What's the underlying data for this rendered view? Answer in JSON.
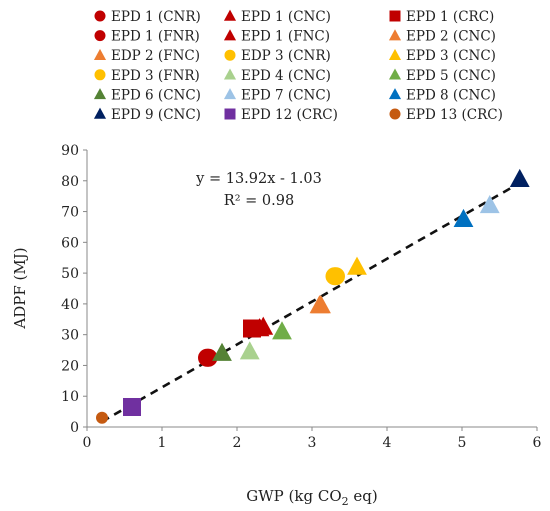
{
  "chart_data": {
    "type": "scatter",
    "xlabel_prefix": "GWP (kg CO",
    "xlabel_sub": "2",
    "xlabel_suffix": " eq)",
    "ylabel": "ADPF (MJ)",
    "xlim": [
      0,
      6
    ],
    "ylim": [
      0,
      90
    ],
    "xticks": [
      "0",
      "1",
      "2",
      "3",
      "4",
      "5",
      "6"
    ],
    "yticks": [
      "0",
      "10",
      "20",
      "30",
      "40",
      "50",
      "60",
      "70",
      "80",
      "90"
    ],
    "grid": false,
    "legend_position": "top",
    "trendline": {
      "style": "dashed",
      "slope": 13.92,
      "intercept": -1.03,
      "x_range": [
        0.2,
        5.75
      ],
      "equation": "y = 13.92x - 1.03",
      "r_squared": "R² = 0.98"
    },
    "series": [
      {
        "name": "EPD 1 (CNR)",
        "marker": "circle",
        "color": "#c00000",
        "points": [
          [
            1.6,
            22.5
          ]
        ]
      },
      {
        "name": "EPD 1 (CNC)",
        "marker": "triangle",
        "color": "#c00000",
        "points": [
          [
            2.3,
            32
          ]
        ]
      },
      {
        "name": "EPD 1 (CRC)",
        "marker": "square",
        "color": "#c00000",
        "points": [
          [
            2.2,
            32
          ]
        ]
      },
      {
        "name": "EPD 1 (FNR)",
        "marker": "circle",
        "color": "#c00000",
        "points": [
          [
            1.62,
            22.5
          ]
        ]
      },
      {
        "name": "EPD 1 (FNC)",
        "marker": "triangle",
        "color": "#c00000",
        "points": [
          [
            2.35,
            32.5
          ]
        ]
      },
      {
        "name": "EPD 2 (CNC)",
        "marker": "triangle",
        "color": "#ed7d31",
        "points": [
          [
            3.12,
            39.5
          ]
        ]
      },
      {
        "name": "EDP 2 (FNC)",
        "marker": "triangle",
        "color": "#ed7d31",
        "points": [
          [
            3.1,
            39.5
          ]
        ]
      },
      {
        "name": "EDP 3 (CNR)",
        "marker": "circle",
        "color": "#ffc000",
        "points": [
          [
            3.3,
            49
          ]
        ]
      },
      {
        "name": "EPD 3 (CNC)",
        "marker": "triangle",
        "color": "#ffc000",
        "points": [
          [
            3.6,
            52
          ]
        ]
      },
      {
        "name": "EPD 3 (FNR)",
        "marker": "circle",
        "color": "#ffc000",
        "points": [
          [
            3.32,
            49
          ]
        ]
      },
      {
        "name": "EPD 4 (CNC)",
        "marker": "triangle",
        "color": "#a9d18e",
        "points": [
          [
            2.17,
            24.5
          ]
        ]
      },
      {
        "name": "EPD 5 (CNC)",
        "marker": "triangle",
        "color": "#70ad47",
        "points": [
          [
            2.6,
            31
          ]
        ]
      },
      {
        "name": "EPD 6 (CNC)",
        "marker": "triangle",
        "color": "#548235",
        "points": [
          [
            1.8,
            24
          ]
        ]
      },
      {
        "name": "EPD 7 (CNC)",
        "marker": "triangle",
        "color": "#9dc3e6",
        "points": [
          [
            5.37,
            72
          ]
        ]
      },
      {
        "name": "EPD 8 (CNC)",
        "marker": "triangle",
        "color": "#0070c0",
        "points": [
          [
            5.02,
            67.5
          ]
        ]
      },
      {
        "name": "EPD 9 (CNC)",
        "marker": "triangle",
        "color": "#002060",
        "points": [
          [
            5.77,
            80.5
          ]
        ]
      },
      {
        "name": "EPD 12 (CRC)",
        "marker": "square",
        "color": "#7030a0",
        "points": [
          [
            0.6,
            6.5
          ]
        ]
      },
      {
        "name": "EPD 13 (CRC)",
        "marker": "circle",
        "color": "#c55a11",
        "points": [
          [
            0.2,
            3
          ]
        ]
      }
    ]
  }
}
